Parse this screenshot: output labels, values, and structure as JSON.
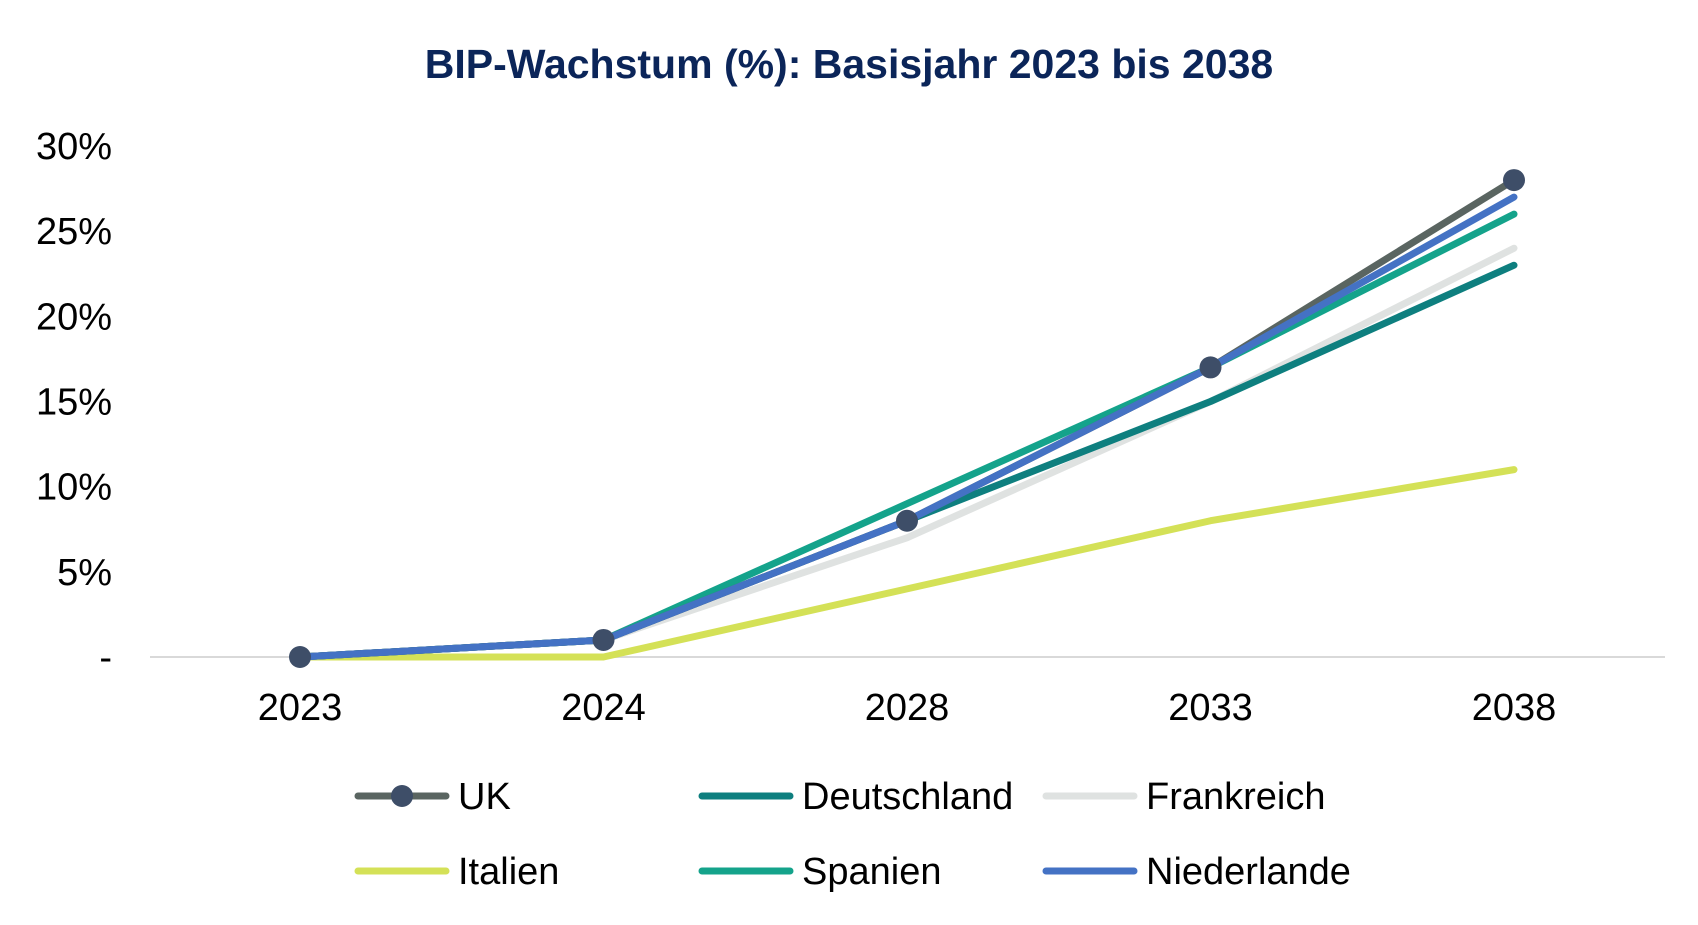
{
  "chart_data": {
    "type": "line",
    "title": "BIP-Wachstum (%): Basisjahr 2023 bis 2038",
    "xlabel": "",
    "ylabel": "",
    "categories": [
      "2023",
      "2024",
      "2028",
      "2033",
      "2038"
    ],
    "y_ticks": [
      {
        "value": 0,
        "label": "-"
      },
      {
        "value": 5,
        "label": "5%"
      },
      {
        "value": 10,
        "label": "10%"
      },
      {
        "value": 15,
        "label": "15%"
      },
      {
        "value": 20,
        "label": "20%"
      },
      {
        "value": 25,
        "label": "25%"
      },
      {
        "value": 30,
        "label": "30%"
      }
    ],
    "ylim": [
      0,
      30
    ],
    "grid": false,
    "legend_position": "bottom",
    "series": [
      {
        "name": "UK",
        "values": [
          0,
          1,
          8,
          17,
          28
        ],
        "color": "#5a6561",
        "markers": true,
        "marker_color": "#3e4e68"
      },
      {
        "name": "Deutschland",
        "values": [
          0,
          1,
          8,
          15,
          23
        ],
        "color": "#0e7f7f",
        "markers": false
      },
      {
        "name": "Frankreich",
        "values": [
          0,
          1,
          7,
          15,
          24
        ],
        "color": "#dfe2e1",
        "markers": false
      },
      {
        "name": "Italien",
        "values": [
          0,
          0,
          4,
          8,
          11
        ],
        "color": "#d4e157",
        "markers": false
      },
      {
        "name": "Spanien",
        "values": [
          0,
          1,
          9,
          17,
          26
        ],
        "color": "#14a38b",
        "markers": false
      },
      {
        "name": "Niederlande",
        "values": [
          0,
          1,
          8,
          17,
          27
        ],
        "color": "#4472c4",
        "markers": false
      }
    ]
  }
}
